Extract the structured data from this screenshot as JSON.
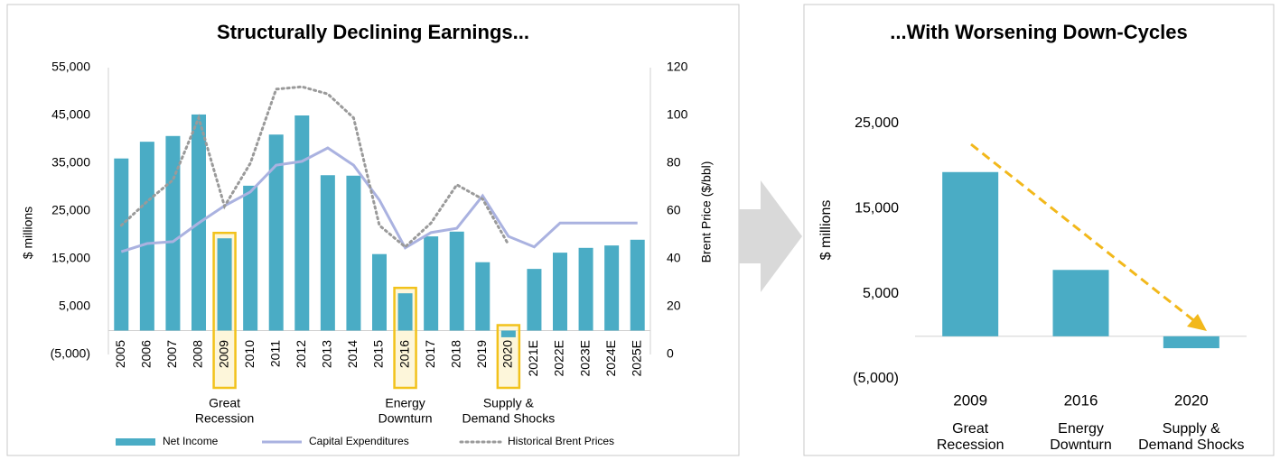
{
  "chart_data": [
    {
      "type": "combo",
      "title": "Structurally Declining Earnings...",
      "categories": [
        "2005",
        "2006",
        "2007",
        "2008",
        "2009",
        "2010",
        "2011",
        "2012",
        "2013",
        "2014",
        "2015",
        "2016",
        "2017",
        "2018",
        "2019",
        "2020",
        "2021E",
        "2022E",
        "2023E",
        "2024E",
        "2025E"
      ],
      "series": [
        {
          "name": "Net Income",
          "type": "bar",
          "color": "#4aacc5",
          "values": [
            36000,
            39500,
            40700,
            45200,
            19300,
            30300,
            41000,
            45000,
            32500,
            32400,
            16000,
            7800,
            19700,
            20700,
            14300,
            -1400,
            12900,
            16300,
            17300,
            17800,
            19000
          ]
        },
        {
          "name": "Capital Expenditures",
          "type": "line",
          "color": "#aab2e0",
          "values": [
            16500,
            18200,
            18600,
            22500,
            26100,
            29000,
            34600,
            35400,
            38200,
            34600,
            27300,
            17300,
            20500,
            21400,
            28200,
            19700,
            17500,
            22500,
            22500,
            22500,
            22500
          ]
        },
        {
          "name": "Historical Brent Prices",
          "type": "line",
          "dash": "dotted",
          "color": "#9a9a9a",
          "axis": "y2",
          "values": [
            54,
            64,
            73,
            99,
            62,
            80,
            111,
            112,
            109,
            99,
            54,
            45,
            55,
            71,
            65,
            46,
            null,
            null,
            null,
            null,
            null
          ]
        }
      ],
      "ylabel": "$ millions",
      "y2label": "Brent Price ($/bbl)",
      "ylim": [
        -5000,
        55000
      ],
      "yticks": [
        {
          "value": -5000,
          "label": "(5,000)"
        },
        {
          "value": 5000,
          "label": "5,000"
        },
        {
          "value": 15000,
          "label": "15,000"
        },
        {
          "value": 25000,
          "label": "25,000"
        },
        {
          "value": 35000,
          "label": "35,000"
        },
        {
          "value": 45000,
          "label": "45,000"
        },
        {
          "value": 55000,
          "label": "55,000"
        }
      ],
      "y2lim": [
        0,
        120
      ],
      "y2ticks": [
        0,
        20,
        40,
        60,
        80,
        100,
        120
      ],
      "highlight_color": "#f2c21b",
      "annotations": [
        {
          "category": "2009",
          "text": [
            "Great",
            "Recession"
          ]
        },
        {
          "category": "2016",
          "text": [
            "Energy",
            "Downturn"
          ]
        },
        {
          "category": "2020",
          "text": [
            "Supply &",
            "Demand Shocks"
          ]
        }
      ]
    },
    {
      "type": "bar",
      "title": "...With Worsening Down-Cycles",
      "categories": [
        "2009",
        "2016",
        "2020"
      ],
      "category_notes": [
        [
          "Great",
          "Recession"
        ],
        [
          "Energy",
          "Downturn"
        ],
        [
          "Supply &",
          "Demand Shocks"
        ]
      ],
      "values": [
        19300,
        7800,
        -1400
      ],
      "color": "#4aacc5",
      "ylabel": "$ millions",
      "ylim": [
        -5000,
        25000
      ],
      "yticks": [
        {
          "value": -5000,
          "label": "(5,000)"
        },
        {
          "value": 5000,
          "label": "5,000"
        },
        {
          "value": 15000,
          "label": "15,000"
        },
        {
          "value": 25000,
          "label": "25,000"
        }
      ],
      "trend_color": "#f2b81b"
    }
  ]
}
